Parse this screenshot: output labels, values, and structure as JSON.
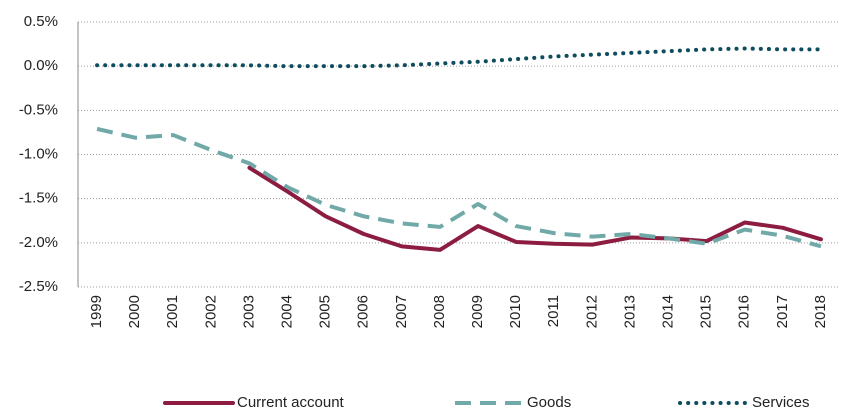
{
  "chart_data": {
    "type": "line",
    "categories": [
      "1999",
      "2000",
      "2001",
      "2002",
      "2003",
      "2004",
      "2005",
      "2006",
      "2007",
      "2008",
      "2009",
      "2010",
      "2011",
      "2012",
      "2013",
      "2014",
      "2015",
      "2016",
      "2017",
      "2018"
    ],
    "series": [
      {
        "name": "Current account",
        "color": "#8c1d40",
        "dash": "solid",
        "values": [
          null,
          null,
          null,
          null,
          -1.15,
          -1.42,
          -1.7,
          -1.9,
          -2.04,
          -2.08,
          -1.81,
          -1.99,
          -2.01,
          -2.02,
          -1.94,
          -1.95,
          -1.98,
          -1.77,
          -1.83,
          -1.96
        ]
      },
      {
        "name": "Goods",
        "color": "#70a9a7",
        "dash": "dashed",
        "values": [
          -0.71,
          -0.81,
          -0.78,
          -0.95,
          -1.1,
          -1.37,
          -1.57,
          -1.7,
          -1.78,
          -1.82,
          -1.56,
          -1.81,
          -1.89,
          -1.93,
          -1.9,
          -1.95,
          -2.01,
          -1.85,
          -1.92,
          -2.04
        ]
      },
      {
        "name": "Services",
        "color": "#0e4d5e",
        "dash": "dotted",
        "values": [
          0.01,
          0.01,
          0.01,
          0.01,
          0.01,
          0.0,
          0.0,
          0.0,
          0.01,
          0.03,
          0.05,
          0.08,
          0.11,
          0.13,
          0.15,
          0.17,
          0.19,
          0.2,
          0.19,
          0.19
        ]
      }
    ],
    "ylim": [
      -2.5,
      0.5
    ],
    "yticks": [
      {
        "value": 0.5,
        "label": "0.5%"
      },
      {
        "value": 0,
        "label": "0.0%"
      },
      {
        "value": -0.5,
        "label": "-0.5%"
      },
      {
        "value": -1,
        "label": "-1.0%"
      },
      {
        "value": -1.5,
        "label": "-1.5%"
      },
      {
        "value": -2,
        "label": "-2.0%"
      },
      {
        "value": -2.5,
        "label": "-2.5%"
      }
    ],
    "grid": true,
    "legend": "bottom"
  }
}
